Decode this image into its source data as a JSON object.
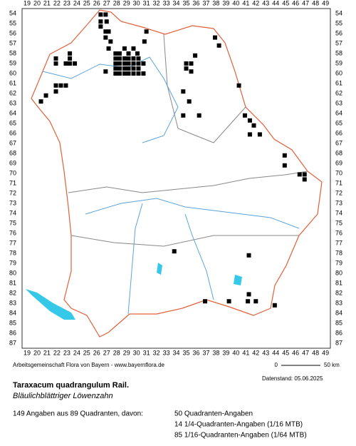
{
  "map": {
    "columns": [
      19,
      20,
      21,
      22,
      23,
      24,
      25,
      26,
      27,
      28,
      29,
      30,
      31,
      32,
      33,
      34,
      35,
      36,
      37,
      38,
      39,
      40,
      41,
      42,
      43,
      44,
      45,
      46,
      47,
      48,
      49
    ],
    "rows": [
      54,
      55,
      56,
      57,
      58,
      59,
      60,
      61,
      62,
      63,
      64,
      65,
      66,
      67,
      68,
      69,
      70,
      71,
      72,
      73,
      74,
      75,
      76,
      77,
      78,
      79,
      80,
      81,
      82,
      83,
      84,
      85,
      86,
      87
    ],
    "occurrences": [
      [
        26.4,
        54.1
      ],
      [
        26.9,
        54.1
      ],
      [
        26.4,
        54.8
      ],
      [
        27.0,
        54.8
      ],
      [
        26.4,
        55.3
      ],
      [
        26.9,
        55.8
      ],
      [
        27.2,
        55.8
      ],
      [
        26.9,
        56.4
      ],
      [
        27.4,
        56.8
      ],
      [
        27.2,
        57.5
      ],
      [
        27.9,
        58.0
      ],
      [
        28.3,
        58.0
      ],
      [
        28.8,
        57.5
      ],
      [
        29.2,
        58.0
      ],
      [
        29.7,
        57.5
      ],
      [
        30.1,
        58.0
      ],
      [
        27.9,
        58.5
      ],
      [
        28.3,
        58.5
      ],
      [
        28.8,
        58.5
      ],
      [
        29.2,
        58.5
      ],
      [
        29.7,
        58.5
      ],
      [
        30.2,
        58.5
      ],
      [
        27.9,
        59.0
      ],
      [
        28.3,
        59.0
      ],
      [
        28.8,
        59.0
      ],
      [
        29.2,
        59.0
      ],
      [
        29.7,
        59.0
      ],
      [
        30.2,
        59.0
      ],
      [
        30.7,
        59.0
      ],
      [
        27.9,
        59.5
      ],
      [
        28.3,
        59.5
      ],
      [
        28.8,
        59.5
      ],
      [
        29.2,
        59.5
      ],
      [
        29.7,
        59.5
      ],
      [
        30.2,
        59.5
      ],
      [
        27.9,
        60.0
      ],
      [
        28.3,
        60.0
      ],
      [
        28.8,
        60.0
      ],
      [
        29.2,
        60.0
      ],
      [
        29.7,
        60.0
      ],
      [
        30.2,
        60.0
      ],
      [
        30.7,
        60.0
      ],
      [
        26.9,
        59.8
      ],
      [
        31.0,
        55.8
      ],
      [
        30.8,
        56.8
      ],
      [
        21.9,
        58.5
      ],
      [
        21.9,
        59.0
      ],
      [
        23.3,
        58.0
      ],
      [
        23.3,
        58.5
      ],
      [
        22.9,
        59.0
      ],
      [
        23.3,
        59.0
      ],
      [
        23.8,
        59.0
      ],
      [
        21.9,
        61.2
      ],
      [
        22.4,
        61.2
      ],
      [
        22.9,
        61.2
      ],
      [
        20.9,
        62.2
      ],
      [
        20.4,
        62.8
      ],
      [
        21.9,
        61.8
      ],
      [
        35.0,
        59.0
      ],
      [
        35.5,
        59.0
      ],
      [
        35.9,
        58.2
      ],
      [
        35.0,
        59.5
      ],
      [
        35.5,
        59.8
      ],
      [
        34.7,
        61.8
      ],
      [
        35.3,
        62.8
      ],
      [
        34.7,
        64.2
      ],
      [
        36.3,
        64.2
      ],
      [
        37.9,
        56.4
      ],
      [
        38.3,
        57.2
      ],
      [
        40.3,
        61.2
      ],
      [
        40.9,
        64.2
      ],
      [
        41.4,
        64.7
      ],
      [
        41.8,
        65.2
      ],
      [
        41.4,
        66.1
      ],
      [
        42.4,
        66.1
      ],
      [
        44.9,
        68.2
      ],
      [
        44.9,
        69.2
      ],
      [
        46.4,
        70.1
      ],
      [
        46.9,
        70.1
      ],
      [
        46.9,
        70.6
      ],
      [
        33.8,
        77.8
      ],
      [
        41.3,
        78.2
      ],
      [
        36.9,
        82.8
      ],
      [
        39.3,
        82.8
      ],
      [
        41.2,
        82.8
      ],
      [
        41.3,
        82.1
      ],
      [
        42.0,
        82.8
      ],
      [
        43.9,
        83.2
      ]
    ],
    "credit": "Arbeitsgemeinschaft Flora von Bayern - www.bayernflora.de",
    "scale_start": "0",
    "scale_end": "50 km",
    "date": "Datenstand: 05.06.2025",
    "title": "Taraxacum quadrangulum Rail.",
    "subtitle": "Bläulichblättriger Löwenzahn",
    "summary": "149 Angaben aus 89 Quadranten, davon:",
    "counts": [
      "50 Quadranten-Angaben",
      "14 1/4-Quadranten-Angaben (1/16 MTB)",
      "85 1/16-Quadranten-Angaben (1/64 MTB)"
    ]
  }
}
